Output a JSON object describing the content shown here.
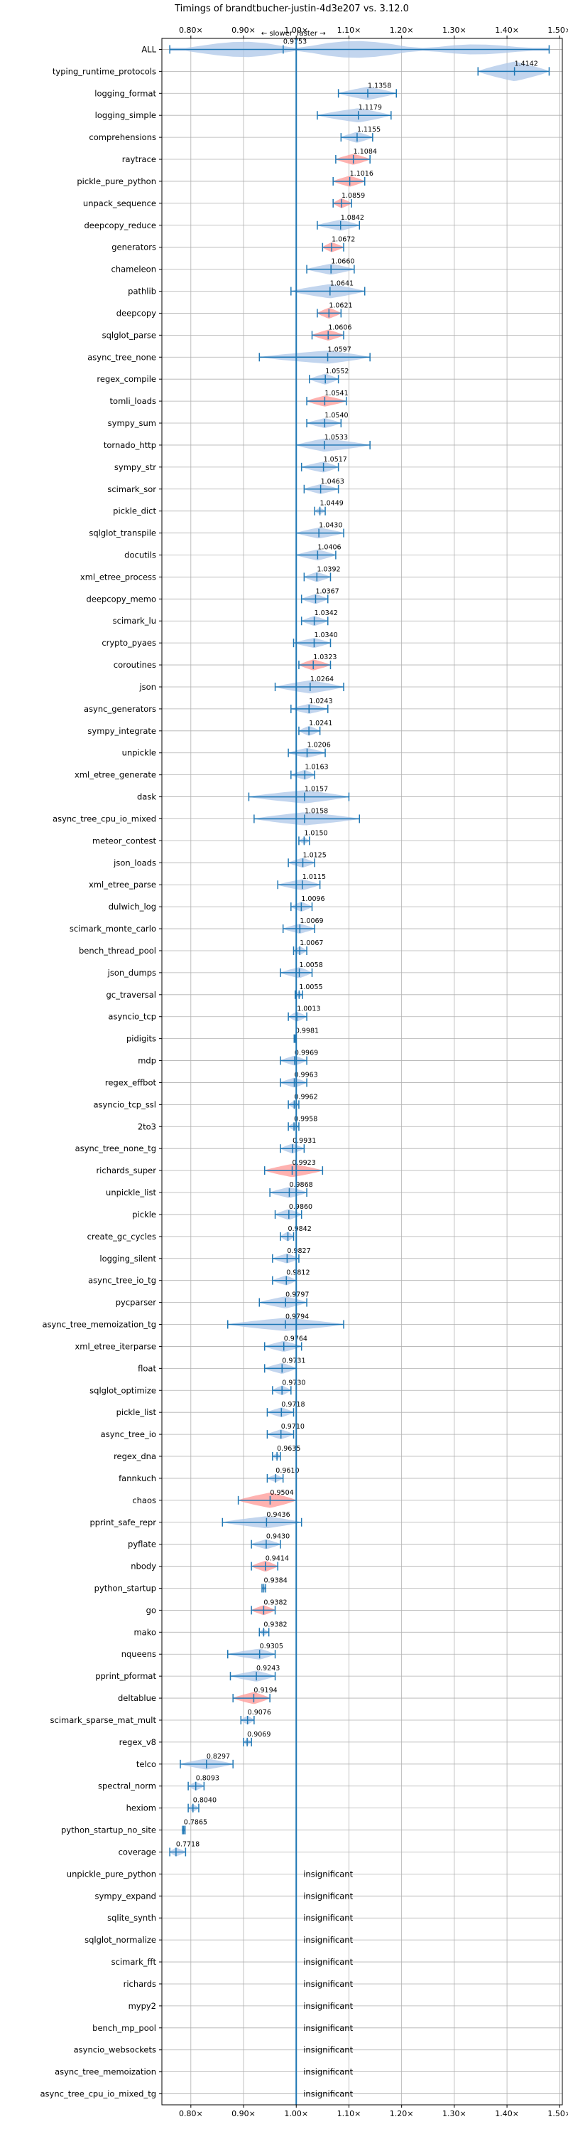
{
  "chart_data": {
    "type": "violin",
    "title": "Timings of brandtbucher-justin-4d3e207 vs. 3.12.0",
    "direction_labels": {
      "slower": "← slower",
      "faster": "faster →"
    },
    "x_ticks": [
      "0.80×",
      "0.90×",
      "1.00×",
      "1.10×",
      "1.20×",
      "1.30×",
      "1.40×",
      "1.50×"
    ],
    "x_tick_values": [
      0.8,
      0.9,
      1.0,
      1.1,
      1.2,
      1.3,
      1.4,
      1.5
    ],
    "xlim": [
      0.745,
      1.505
    ],
    "grid": true,
    "reference_line": 1.0,
    "insignificant_label": "insignificant",
    "colors": {
      "violin": "#1f77b4",
      "significant_slow": "#ff9896",
      "axis": "#1f77b4",
      "grid": "#b0b0b0"
    },
    "benchmarks": [
      {
        "name": "ALL",
        "mean": 0.9753,
        "lo": 0.76,
        "hi": 1.48,
        "width": 0.9,
        "color": "blue",
        "shape": "multi"
      },
      {
        "name": "typing_runtime_protocols",
        "mean": 1.4142,
        "lo": 1.345,
        "hi": 1.48,
        "width": 0.9,
        "color": "blue"
      },
      {
        "name": "logging_format",
        "mean": 1.1358,
        "lo": 1.08,
        "hi": 1.19,
        "width": 0.6,
        "color": "blue"
      },
      {
        "name": "logging_simple",
        "mean": 1.1179,
        "lo": 1.04,
        "hi": 1.18,
        "width": 0.65,
        "color": "blue"
      },
      {
        "name": "comprehensions",
        "mean": 1.1155,
        "lo": 1.085,
        "hi": 1.145,
        "width": 0.5,
        "color": "blue"
      },
      {
        "name": "raytrace",
        "mean": 1.1084,
        "lo": 1.075,
        "hi": 1.14,
        "width": 0.5,
        "color": "red"
      },
      {
        "name": "pickle_pure_python",
        "mean": 1.1016,
        "lo": 1.07,
        "hi": 1.13,
        "width": 0.5,
        "color": "red"
      },
      {
        "name": "unpack_sequence",
        "mean": 1.0859,
        "lo": 1.07,
        "hi": 1.105,
        "width": 0.45,
        "color": "red"
      },
      {
        "name": "deepcopy_reduce",
        "mean": 1.0842,
        "lo": 1.04,
        "hi": 1.12,
        "width": 0.5,
        "color": "blue"
      },
      {
        "name": "generators",
        "mean": 1.0672,
        "lo": 1.05,
        "hi": 1.09,
        "width": 0.45,
        "color": "red"
      },
      {
        "name": "chameleon",
        "mean": 1.066,
        "lo": 1.02,
        "hi": 1.11,
        "width": 0.5,
        "color": "blue"
      },
      {
        "name": "pathlib",
        "mean": 1.0641,
        "lo": 0.99,
        "hi": 1.13,
        "width": 0.65,
        "color": "blue"
      },
      {
        "name": "deepcopy",
        "mean": 1.0621,
        "lo": 1.04,
        "hi": 1.085,
        "width": 0.5,
        "color": "red"
      },
      {
        "name": "sqlglot_parse",
        "mean": 1.0606,
        "lo": 1.03,
        "hi": 1.09,
        "width": 0.5,
        "color": "red"
      },
      {
        "name": "async_tree_none",
        "mean": 1.0597,
        "lo": 0.93,
        "hi": 1.14,
        "width": 0.6,
        "color": "blue"
      },
      {
        "name": "regex_compile",
        "mean": 1.0552,
        "lo": 1.025,
        "hi": 1.08,
        "width": 0.5,
        "color": "blue"
      },
      {
        "name": "tomli_loads",
        "mean": 1.0541,
        "lo": 1.02,
        "hi": 1.095,
        "width": 0.5,
        "color": "red"
      },
      {
        "name": "sympy_sum",
        "mean": 1.054,
        "lo": 1.02,
        "hi": 1.085,
        "width": 0.45,
        "color": "blue"
      },
      {
        "name": "tornado_http",
        "mean": 1.0533,
        "lo": 1.0,
        "hi": 1.14,
        "width": 0.6,
        "color": "blue"
      },
      {
        "name": "sympy_str",
        "mean": 1.0517,
        "lo": 1.01,
        "hi": 1.08,
        "width": 0.5,
        "color": "blue"
      },
      {
        "name": "scimark_sor",
        "mean": 1.0463,
        "lo": 1.015,
        "hi": 1.08,
        "width": 0.45,
        "color": "blue"
      },
      {
        "name": "pickle_dict",
        "mean": 1.0449,
        "lo": 1.035,
        "hi": 1.055,
        "width": 0.3,
        "color": "blue"
      },
      {
        "name": "sqlglot_transpile",
        "mean": 1.043,
        "lo": 1.0,
        "hi": 1.09,
        "width": 0.5,
        "color": "blue"
      },
      {
        "name": "docutils",
        "mean": 1.0406,
        "lo": 1.0,
        "hi": 1.075,
        "width": 0.5,
        "color": "blue"
      },
      {
        "name": "xml_etree_process",
        "mean": 1.0392,
        "lo": 1.015,
        "hi": 1.065,
        "width": 0.45,
        "color": "blue"
      },
      {
        "name": "deepcopy_memo",
        "mean": 1.0367,
        "lo": 1.01,
        "hi": 1.06,
        "width": 0.45,
        "color": "blue"
      },
      {
        "name": "scimark_lu",
        "mean": 1.0342,
        "lo": 1.01,
        "hi": 1.06,
        "width": 0.45,
        "color": "blue"
      },
      {
        "name": "crypto_pyaes",
        "mean": 1.034,
        "lo": 0.995,
        "hi": 1.065,
        "width": 0.45,
        "color": "blue"
      },
      {
        "name": "coroutines",
        "mean": 1.0323,
        "lo": 1.005,
        "hi": 1.065,
        "width": 0.5,
        "color": "red"
      },
      {
        "name": "json",
        "mean": 1.0264,
        "lo": 0.96,
        "hi": 1.09,
        "width": 0.6,
        "color": "blue"
      },
      {
        "name": "async_generators",
        "mean": 1.0243,
        "lo": 0.99,
        "hi": 1.06,
        "width": 0.45,
        "color": "blue"
      },
      {
        "name": "sympy_integrate",
        "mean": 1.0241,
        "lo": 1.005,
        "hi": 1.045,
        "width": 0.45,
        "color": "blue"
      },
      {
        "name": "unpickle",
        "mean": 1.0206,
        "lo": 0.985,
        "hi": 1.055,
        "width": 0.45,
        "color": "blue"
      },
      {
        "name": "xml_etree_generate",
        "mean": 1.0163,
        "lo": 0.99,
        "hi": 1.035,
        "width": 0.45,
        "color": "blue"
      },
      {
        "name": "dask",
        "mean": 1.0157,
        "lo": 0.91,
        "hi": 1.1,
        "width": 0.6,
        "color": "blue"
      },
      {
        "name": "async_tree_cpu_io_mixed",
        "mean": 1.0158,
        "lo": 0.92,
        "hi": 1.12,
        "width": 0.6,
        "color": "blue"
      },
      {
        "name": "meteor_contest",
        "mean": 1.015,
        "lo": 1.005,
        "hi": 1.025,
        "width": 0.3,
        "color": "blue"
      },
      {
        "name": "json_loads",
        "mean": 1.0125,
        "lo": 0.985,
        "hi": 1.035,
        "width": 0.45,
        "color": "blue"
      },
      {
        "name": "xml_etree_parse",
        "mean": 1.0115,
        "lo": 0.965,
        "hi": 1.045,
        "width": 0.5,
        "color": "blue"
      },
      {
        "name": "dulwich_log",
        "mean": 1.0096,
        "lo": 0.99,
        "hi": 1.03,
        "width": 0.45,
        "color": "blue"
      },
      {
        "name": "scimark_monte_carlo",
        "mean": 1.0069,
        "lo": 0.975,
        "hi": 1.035,
        "width": 0.45,
        "color": "blue"
      },
      {
        "name": "bench_thread_pool",
        "mean": 1.0067,
        "lo": 0.995,
        "hi": 1.02,
        "width": 0.4,
        "color": "blue"
      },
      {
        "name": "json_dumps",
        "mean": 1.0058,
        "lo": 0.97,
        "hi": 1.03,
        "width": 0.5,
        "color": "blue"
      },
      {
        "name": "gc_traversal",
        "mean": 1.0055,
        "lo": 0.998,
        "hi": 1.012,
        "width": 0.3,
        "color": "blue"
      },
      {
        "name": "asyncio_tcp",
        "mean": 1.0013,
        "lo": 0.985,
        "hi": 1.02,
        "width": 0.45,
        "color": "blue"
      },
      {
        "name": "pidigits",
        "mean": 0.9981,
        "lo": 0.996,
        "hi": 1.0,
        "width": 0.25,
        "color": "blue"
      },
      {
        "name": "mdp",
        "mean": 0.9969,
        "lo": 0.97,
        "hi": 1.02,
        "width": 0.45,
        "color": "blue"
      },
      {
        "name": "regex_effbot",
        "mean": 0.9963,
        "lo": 0.97,
        "hi": 1.02,
        "width": 0.45,
        "color": "blue"
      },
      {
        "name": "asyncio_tcp_ssl",
        "mean": 0.9962,
        "lo": 0.985,
        "hi": 1.005,
        "width": 0.35,
        "color": "blue"
      },
      {
        "name": "2to3",
        "mean": 0.9958,
        "lo": 0.985,
        "hi": 1.005,
        "width": 0.35,
        "color": "blue"
      },
      {
        "name": "async_tree_none_tg",
        "mean": 0.9931,
        "lo": 0.97,
        "hi": 1.015,
        "width": 0.45,
        "color": "blue"
      },
      {
        "name": "richards_super",
        "mean": 0.9923,
        "lo": 0.94,
        "hi": 1.05,
        "width": 0.6,
        "color": "red"
      },
      {
        "name": "unpickle_list",
        "mean": 0.9868,
        "lo": 0.95,
        "hi": 1.02,
        "width": 0.5,
        "color": "blue"
      },
      {
        "name": "pickle",
        "mean": 0.986,
        "lo": 0.96,
        "hi": 1.01,
        "width": 0.5,
        "color": "blue"
      },
      {
        "name": "create_gc_cycles",
        "mean": 0.9842,
        "lo": 0.97,
        "hi": 0.995,
        "width": 0.45,
        "color": "blue"
      },
      {
        "name": "logging_silent",
        "mean": 0.9827,
        "lo": 0.955,
        "hi": 1.005,
        "width": 0.45,
        "color": "blue"
      },
      {
        "name": "async_tree_io_tg",
        "mean": 0.9812,
        "lo": 0.955,
        "hi": 1.0,
        "width": 0.45,
        "color": "blue"
      },
      {
        "name": "pycparser",
        "mean": 0.9797,
        "lo": 0.93,
        "hi": 1.02,
        "width": 0.55,
        "color": "blue"
      },
      {
        "name": "async_tree_memoization_tg",
        "mean": 0.9794,
        "lo": 0.87,
        "hi": 1.09,
        "width": 0.6,
        "color": "blue"
      },
      {
        "name": "xml_etree_iterparse",
        "mean": 0.9764,
        "lo": 0.94,
        "hi": 1.01,
        "width": 0.5,
        "color": "blue"
      },
      {
        "name": "float",
        "mean": 0.9731,
        "lo": 0.94,
        "hi": 1.0,
        "width": 0.5,
        "color": "blue"
      },
      {
        "name": "sqlglot_optimize",
        "mean": 0.973,
        "lo": 0.955,
        "hi": 0.99,
        "width": 0.45,
        "color": "blue"
      },
      {
        "name": "pickle_list",
        "mean": 0.9718,
        "lo": 0.945,
        "hi": 0.995,
        "width": 0.45,
        "color": "blue"
      },
      {
        "name": "async_tree_io",
        "mean": 0.971,
        "lo": 0.945,
        "hi": 0.995,
        "width": 0.45,
        "color": "blue"
      },
      {
        "name": "regex_dna",
        "mean": 0.9635,
        "lo": 0.955,
        "hi": 0.97,
        "width": 0.3,
        "color": "blue"
      },
      {
        "name": "fannkuch",
        "mean": 0.961,
        "lo": 0.945,
        "hi": 0.975,
        "width": 0.35,
        "color": "blue"
      },
      {
        "name": "chaos",
        "mean": 0.9504,
        "lo": 0.89,
        "hi": 1.0,
        "width": 0.7,
        "color": "red"
      },
      {
        "name": "pprint_safe_repr",
        "mean": 0.9436,
        "lo": 0.86,
        "hi": 1.01,
        "width": 0.55,
        "color": "blue"
      },
      {
        "name": "pyflate",
        "mean": 0.943,
        "lo": 0.915,
        "hi": 0.97,
        "width": 0.45,
        "color": "blue"
      },
      {
        "name": "nbody",
        "mean": 0.9414,
        "lo": 0.915,
        "hi": 0.965,
        "width": 0.5,
        "color": "red"
      },
      {
        "name": "python_startup",
        "mean": 0.9384,
        "lo": 0.935,
        "hi": 0.942,
        "width": 0.25,
        "color": "blue"
      },
      {
        "name": "go",
        "mean": 0.9382,
        "lo": 0.915,
        "hi": 0.96,
        "width": 0.45,
        "color": "red"
      },
      {
        "name": "mako",
        "mean": 0.9382,
        "lo": 0.93,
        "hi": 0.948,
        "width": 0.3,
        "color": "blue"
      },
      {
        "name": "nqueens",
        "mean": 0.9305,
        "lo": 0.87,
        "hi": 0.96,
        "width": 0.5,
        "color": "blue"
      },
      {
        "name": "pprint_pformat",
        "mean": 0.9243,
        "lo": 0.875,
        "hi": 0.96,
        "width": 0.5,
        "color": "blue"
      },
      {
        "name": "deltablue",
        "mean": 0.9194,
        "lo": 0.88,
        "hi": 0.95,
        "width": 0.55,
        "color": "red"
      },
      {
        "name": "scimark_sparse_mat_mult",
        "mean": 0.9076,
        "lo": 0.895,
        "hi": 0.92,
        "width": 0.4,
        "color": "blue"
      },
      {
        "name": "regex_v8",
        "mean": 0.9069,
        "lo": 0.9,
        "hi": 0.915,
        "width": 0.3,
        "color": "blue"
      },
      {
        "name": "telco",
        "mean": 0.8297,
        "lo": 0.78,
        "hi": 0.88,
        "width": 0.5,
        "color": "blue"
      },
      {
        "name": "spectral_norm",
        "mean": 0.8093,
        "lo": 0.795,
        "hi": 0.825,
        "width": 0.4,
        "color": "blue"
      },
      {
        "name": "hexiom",
        "mean": 0.804,
        "lo": 0.795,
        "hi": 0.815,
        "width": 0.35,
        "color": "blue"
      },
      {
        "name": "python_startup_no_site",
        "mean": 0.7865,
        "lo": 0.784,
        "hi": 0.789,
        "width": 0.25,
        "color": "blue"
      },
      {
        "name": "coverage",
        "mean": 0.7718,
        "lo": 0.76,
        "hi": 0.79,
        "width": 0.4,
        "color": "blue"
      },
      {
        "name": "unpickle_pure_python",
        "insignificant": true
      },
      {
        "name": "sympy_expand",
        "insignificant": true
      },
      {
        "name": "sqlite_synth",
        "insignificant": true
      },
      {
        "name": "sqlglot_normalize",
        "insignificant": true
      },
      {
        "name": "scimark_fft",
        "insignificant": true
      },
      {
        "name": "richards",
        "insignificant": true
      },
      {
        "name": "mypy2",
        "insignificant": true
      },
      {
        "name": "bench_mp_pool",
        "insignificant": true
      },
      {
        "name": "asyncio_websockets",
        "insignificant": true
      },
      {
        "name": "async_tree_memoization",
        "insignificant": true
      },
      {
        "name": "async_tree_cpu_io_mixed_tg",
        "insignificant": true
      }
    ]
  }
}
